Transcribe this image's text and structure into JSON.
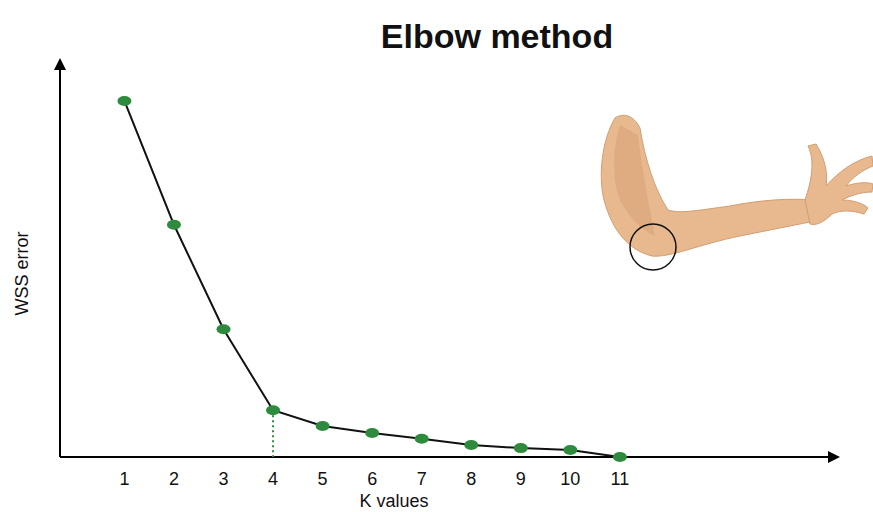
{
  "chart_data": {
    "type": "line",
    "title": "Elbow method",
    "x_label": "K values",
    "y_label": "WSS error",
    "x": [
      1,
      2,
      3,
      4,
      5,
      6,
      7,
      8,
      9,
      10,
      11
    ],
    "values": [
      92,
      60,
      33,
      12.1,
      8,
      6.2,
      4.7,
      3.1,
      2.3,
      1.8,
      0
    ],
    "xlim": [
      -0.3,
      15.2
    ],
    "xticks": [
      1,
      2,
      3,
      4,
      5,
      6,
      7,
      8,
      9,
      10,
      11
    ],
    "ylim": [
      0,
      100
    ],
    "tick_labels": "x",
    "grid": false,
    "color": "#2e8b3e",
    "marker": "circle",
    "line_style": "solid",
    "elbow": 4
  }
}
